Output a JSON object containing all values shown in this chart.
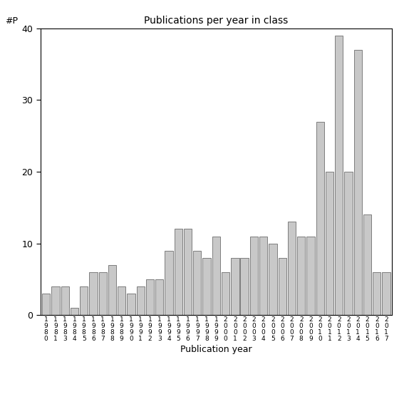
{
  "title": "Publications per year in class",
  "xlabel": "Publication year",
  "ylabel": "#P",
  "bar_color": "#c8c8c8",
  "bar_edgecolor": "#555555",
  "background_color": "#ffffff",
  "ylim": [
    0,
    40
  ],
  "yticks": [
    0,
    10,
    20,
    30,
    40
  ],
  "years": [
    1980,
    1981,
    1983,
    1984,
    1985,
    1986,
    1987,
    1988,
    1989,
    1990,
    1991,
    1992,
    1993,
    1994,
    1995,
    1996,
    1997,
    1998,
    1999,
    2000,
    2001,
    2002,
    2003,
    2004,
    2005,
    2006,
    2007,
    2008,
    2009,
    2010,
    2011,
    2012,
    2013,
    2014,
    2015,
    2016,
    2017
  ],
  "values": [
    3,
    4,
    4,
    1,
    4,
    6,
    6,
    7,
    4,
    3,
    4,
    5,
    5,
    9,
    12,
    12,
    9,
    8,
    11,
    6,
    8,
    8,
    11,
    11,
    10,
    8,
    13,
    11,
    11,
    27,
    20,
    39,
    20,
    37,
    14,
    6,
    6
  ]
}
